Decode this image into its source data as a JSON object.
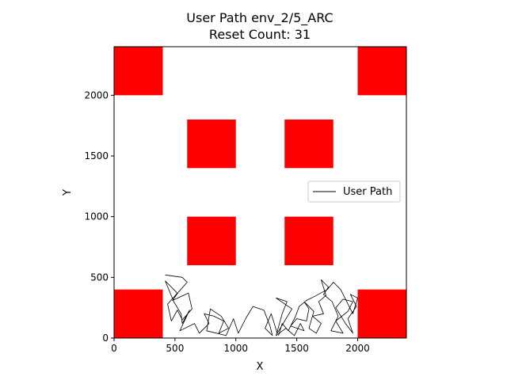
{
  "chart_data": {
    "type": "line",
    "title": "User Path env_2/5_ARC",
    "subtitle": "Reset Count: 31",
    "xlabel": "X",
    "ylabel": "Y",
    "xlim": [
      0,
      2400
    ],
    "ylim": [
      0,
      2400
    ],
    "xticks": [
      0,
      500,
      1000,
      1500,
      2000
    ],
    "yticks": [
      0,
      500,
      1000,
      1500,
      2000
    ],
    "grid": false,
    "legend": {
      "placement": "center-right",
      "entries": [
        "User Path"
      ]
    },
    "obstacle_color": "#ff0000",
    "path_color": "#000000",
    "obstacles": [
      {
        "x0": 0,
        "y0": 2000,
        "x1": 400,
        "y1": 2400
      },
      {
        "x0": 2000,
        "y0": 2000,
        "x1": 2400,
        "y1": 2400
      },
      {
        "x0": 600,
        "y0": 1400,
        "x1": 1000,
        "y1": 1800
      },
      {
        "x0": 1400,
        "y0": 1400,
        "x1": 1800,
        "y1": 1800
      },
      {
        "x0": 600,
        "y0": 600,
        "x1": 1000,
        "y1": 1000
      },
      {
        "x0": 1400,
        "y0": 600,
        "x1": 1800,
        "y1": 1000
      },
      {
        "x0": 0,
        "y0": 0,
        "x1": 400,
        "y1": 400
      },
      {
        "x0": 2000,
        "y0": 0,
        "x1": 2400,
        "y1": 400
      }
    ],
    "series": [
      {
        "name": "User Path",
        "points": [
          [
            420,
            520
          ],
          [
            560,
            500
          ],
          [
            600,
            460
          ],
          [
            530,
            380
          ],
          [
            480,
            310
          ],
          [
            610,
            370
          ],
          [
            640,
            240
          ],
          [
            560,
            150
          ],
          [
            520,
            230
          ],
          [
            470,
            140
          ],
          [
            440,
            280
          ],
          [
            520,
            370
          ],
          [
            420,
            470
          ],
          [
            490,
            300
          ],
          [
            550,
            200
          ],
          [
            560,
            120
          ],
          [
            620,
            230
          ],
          [
            540,
            60
          ],
          [
            660,
            120
          ],
          [
            700,
            40
          ],
          [
            780,
            120
          ],
          [
            740,
            200
          ],
          [
            820,
            180
          ],
          [
            900,
            140
          ],
          [
            860,
            40
          ],
          [
            940,
            80
          ],
          [
            880,
            180
          ],
          [
            790,
            240
          ],
          [
            760,
            60
          ],
          [
            920,
            20
          ],
          [
            980,
            160
          ],
          [
            1020,
            40
          ],
          [
            1080,
            160
          ],
          [
            1140,
            260
          ],
          [
            1230,
            230
          ],
          [
            1280,
            100
          ],
          [
            1300,
            20
          ],
          [
            1240,
            80
          ],
          [
            1290,
            200
          ],
          [
            1340,
            40
          ],
          [
            1400,
            140
          ],
          [
            1460,
            240
          ],
          [
            1330,
            330
          ],
          [
            1420,
            300
          ],
          [
            1380,
            200
          ],
          [
            1330,
            20
          ],
          [
            1410,
            80
          ],
          [
            1480,
            20
          ],
          [
            1530,
            120
          ],
          [
            1560,
            60
          ],
          [
            1450,
            100
          ],
          [
            1500,
            160
          ],
          [
            1580,
            140
          ],
          [
            1600,
            240
          ],
          [
            1560,
            300
          ],
          [
            1640,
            220
          ],
          [
            1600,
            80
          ],
          [
            1660,
            40
          ],
          [
            1700,
            120
          ],
          [
            1630,
            180
          ],
          [
            1720,
            200
          ],
          [
            1680,
            300
          ],
          [
            1740,
            350
          ],
          [
            1700,
            480
          ],
          [
            1760,
            420
          ],
          [
            1720,
            360
          ],
          [
            1790,
            300
          ],
          [
            1840,
            180
          ],
          [
            1780,
            60
          ],
          [
            1880,
            40
          ],
          [
            1820,
            140
          ],
          [
            1920,
            220
          ],
          [
            1960,
            300
          ],
          [
            1880,
            320
          ],
          [
            1820,
            250
          ],
          [
            1900,
            120
          ],
          [
            1960,
            40
          ],
          [
            1920,
            160
          ],
          [
            1990,
            260
          ],
          [
            1940,
            360
          ],
          [
            2000,
            330
          ],
          [
            1960,
            200
          ],
          [
            1860,
            400
          ],
          [
            1800,
            460
          ],
          [
            1750,
            400
          ],
          [
            1660,
            350
          ],
          [
            1580,
            310
          ],
          [
            1520,
            260
          ],
          [
            1490,
            180
          ],
          [
            1430,
            60
          ],
          [
            1380,
            120
          ],
          [
            1350,
            20
          ]
        ]
      }
    ]
  }
}
